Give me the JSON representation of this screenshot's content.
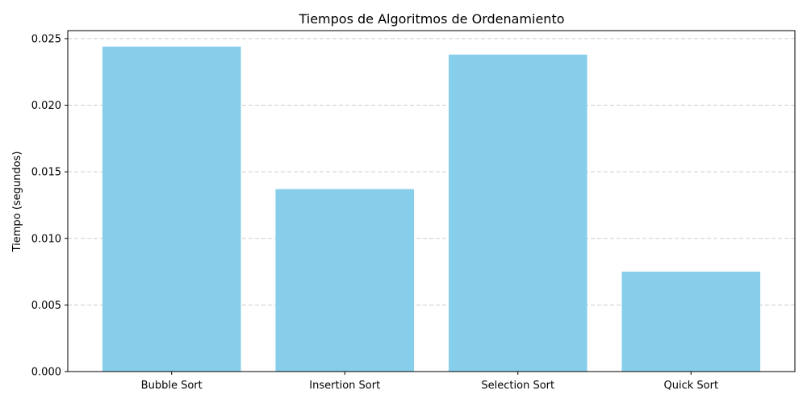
{
  "chart_data": {
    "type": "bar",
    "title": "Tiempos de Algoritmos de Ordenamiento",
    "xlabel": "",
    "ylabel": "Tiempo (segundos)",
    "categories": [
      "Bubble Sort",
      "Insertion Sort",
      "Selection Sort",
      "Quick Sort"
    ],
    "values": [
      0.0244,
      0.0137,
      0.0238,
      0.0075
    ],
    "ylim": [
      0,
      0.0256
    ],
    "yticks": [
      "0.000",
      "0.005",
      "0.010",
      "0.015",
      "0.020",
      "0.025"
    ],
    "ytick_values": [
      0,
      0.005,
      0.01,
      0.015,
      0.02,
      0.025
    ],
    "bar_color": "#87CEEB",
    "grid": "y-dashed",
    "legend": "none"
  }
}
